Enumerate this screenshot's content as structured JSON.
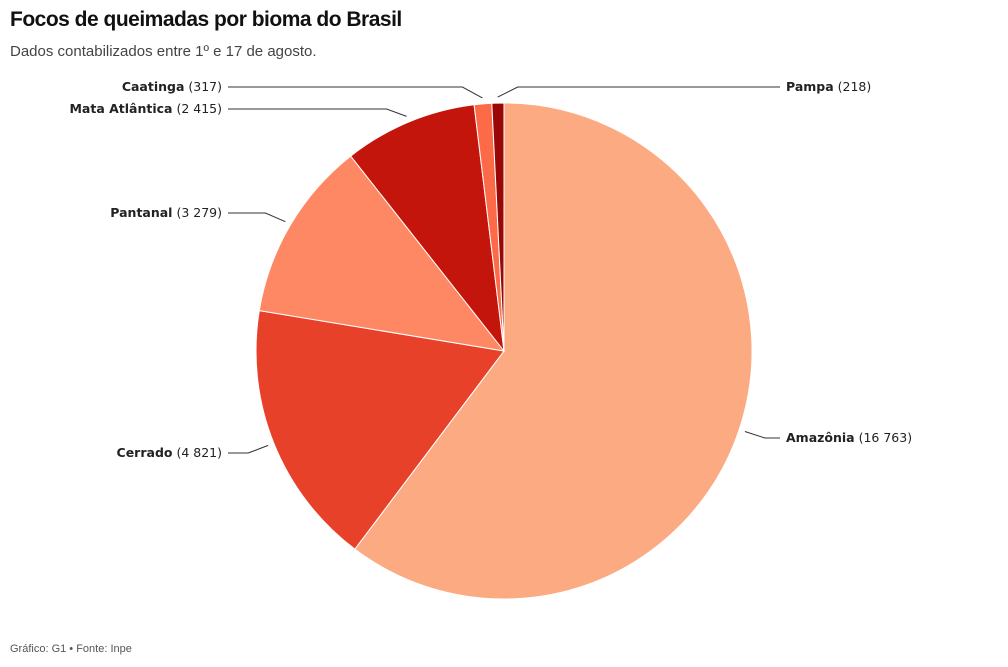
{
  "header": {
    "title": "Focos de queimadas por bioma do Brasil",
    "subtitle": "Dados contabilizados entre 1º e 17 de agosto."
  },
  "footer": {
    "source": "Gráfico: G1 • Fonte: Inpe"
  },
  "chart_data": {
    "type": "pie",
    "title": "Focos de queimadas por bioma do Brasil",
    "subtitle": "Dados contabilizados entre 1º e 17 de agosto.",
    "slices": [
      {
        "label": "Amazônia",
        "value": 16763,
        "value_label": "(16 763)",
        "color": "#FCAA82"
      },
      {
        "label": "Cerrado",
        "value": 4821,
        "value_label": "(4 821)",
        "color": "#E8412A"
      },
      {
        "label": "Pantanal",
        "value": 3279,
        "value_label": "(3 279)",
        "color": "#FE8863"
      },
      {
        "label": "Mata Atlântica",
        "value": 2415,
        "value_label": "(2 415)",
        "color": "#C4150C"
      },
      {
        "label": "Caatinga",
        "value": 317,
        "value_label": "(317)",
        "color": "#FD6A47"
      },
      {
        "label": "Pampa",
        "value": 218,
        "value_label": "(218)",
        "color": "#9A0707"
      }
    ]
  }
}
